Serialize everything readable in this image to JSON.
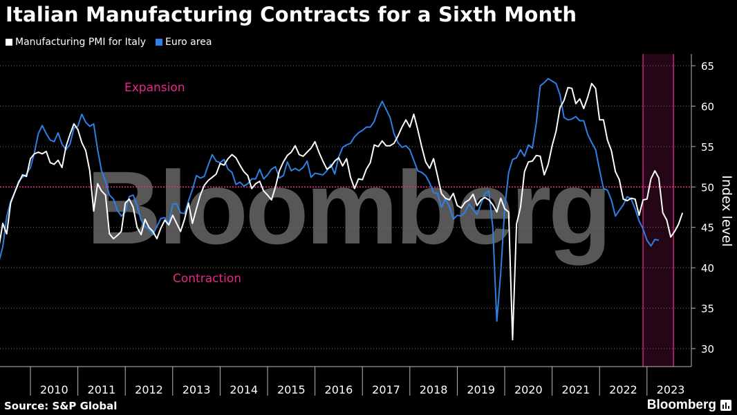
{
  "header": {
    "title": "Italian Manufacturing Contracts for a Sixth Month"
  },
  "legend": [
    {
      "label": "Manufacturing PMI for Italy",
      "color": "#ffffff"
    },
    {
      "label": "Euro area",
      "color": "#2f80e6"
    }
  ],
  "footer": {
    "source": "Source: S&P Global",
    "brand": "Bloomberg"
  },
  "watermark": "Bloomberg",
  "chart_data": {
    "type": "line",
    "ylabel": "Index level",
    "ylim": [
      28,
      66
    ],
    "yticks": [
      30,
      35,
      40,
      45,
      50,
      55,
      60,
      65
    ],
    "x_categories": [
      "2010",
      "2011",
      "2012",
      "2013",
      "2014",
      "2015",
      "2016",
      "2017",
      "2018",
      "2019",
      "2020",
      "2021",
      "2022",
      "2023"
    ],
    "x_start": "2009-03",
    "x_end": "2023-07",
    "reference_line": {
      "value": 50,
      "color": "#e8288c"
    },
    "annotations": [
      {
        "text": "Expansion",
        "color": "#e8288c"
      },
      {
        "text": "Contraction",
        "color": "#e8288c"
      }
    ],
    "highlight_period": {
      "start": "2022-12",
      "end": "2023-07",
      "color": "#e8288c"
    },
    "series": [
      {
        "name": "Manufacturing PMI for Italy",
        "color": "#ffffff",
        "start": "2009-03",
        "values": [
          37,
          41,
          42.5,
          45.5,
          44.2,
          48,
          49.3,
          50.5,
          51.5,
          51.3,
          53.5,
          54.1,
          54.3,
          54.1,
          54.4,
          53,
          52.8,
          53.3,
          52.4,
          55,
          56.5,
          57.8,
          57.1,
          55.5,
          54.5,
          52,
          47,
          50.4,
          49.5,
          49,
          44.2,
          43.6,
          44,
          44.5,
          48,
          48.5,
          47.5,
          45,
          44.1,
          46,
          45,
          44.5,
          43.6,
          44.9,
          45.9,
          45.3,
          46.5,
          45.5,
          44.5,
          46,
          48,
          45.5,
          47.3,
          49,
          50.2,
          50.8,
          51.2,
          51.6,
          52.9,
          52.7,
          53.5,
          54,
          53.6,
          52.7,
          51.9,
          51.4,
          49.8,
          50.4,
          50.7,
          49.5,
          49,
          48.4,
          50,
          52,
          53.1,
          53.9,
          54.3,
          55.1,
          54,
          53.8,
          54.3,
          54.8,
          55.6,
          54.3,
          53.2,
          52.2,
          52.5,
          53.2,
          53.6,
          52.6,
          53.5,
          51.2,
          49.8,
          51,
          50.9,
          52.2,
          53,
          55.2,
          55,
          55.7,
          55.1,
          55.1,
          55.4,
          56.3,
          57.4,
          58.3,
          57.4,
          59,
          57.1,
          55,
          53.1,
          52.3,
          53.5,
          51.4,
          49.2,
          48.6,
          48.4,
          49.2,
          47.7,
          47.4,
          48.1,
          48.4,
          49.1,
          47.7,
          48.4,
          48.7,
          48.4,
          47.8,
          46.9,
          48.6,
          47.3,
          46.9,
          31.1,
          45.4,
          47.5,
          51.9,
          53.1,
          53.2,
          53.9,
          53.8,
          51.5,
          52.8,
          55.1,
          56.9,
          59.8,
          60.7,
          62.3,
          62.2,
          60.3,
          60.9,
          59.7,
          61.1,
          62.8,
          62.2,
          58.3,
          58.3,
          55.8,
          54.5,
          51.9,
          50.9,
          48.5,
          48.3,
          48.6,
          48.5,
          46.5,
          48.4,
          48.5,
          51,
          52,
          51.1,
          46.8,
          45.9,
          43.8,
          44.5,
          45.4,
          46.8
        ]
      },
      {
        "name": "Euro area",
        "color": "#2f80e6",
        "start": "2009-03",
        "values": [
          33.9,
          36.8,
          40.7,
          42.6,
          46.3,
          48.2,
          49.3,
          50.7,
          51.2,
          51.6,
          52.4,
          54.2,
          56.6,
          57.6,
          56.6,
          55.8,
          55.6,
          56.7,
          55.3,
          54.6,
          55.3,
          57.3,
          57.5,
          59,
          58,
          57.5,
          57.8,
          54.6,
          52,
          50.7,
          49,
          48.5,
          47.1,
          46.4,
          46.9,
          48.8,
          49,
          47.7,
          45.9,
          45.1,
          44.8,
          44.1,
          45.1,
          46.1,
          46.2,
          45.4,
          47.9,
          47.9,
          46.8,
          46.7,
          48.3,
          49.7,
          51.4,
          51.1,
          51.3,
          52.7,
          54,
          53.2,
          53,
          53.4,
          52.2,
          51.8,
          50.3,
          50.6,
          50.1,
          50.4,
          51,
          51,
          52.2,
          51,
          51.5,
          52.2,
          52.5,
          51.1,
          51.4,
          53.1,
          52,
          52.3,
          52,
          52.4,
          53.2,
          51.2,
          51.7,
          51.6,
          51.5,
          52,
          52.8,
          51.6,
          53.7,
          54.9,
          55.2,
          55.4,
          56.2,
          56.7,
          57,
          57.4,
          57.4,
          58.1,
          59.6,
          60.6,
          59.6,
          58.6,
          56.6,
          55.5,
          54.9,
          55.1,
          54.6,
          53.3,
          52,
          51.8,
          51.4,
          50.5,
          49.3,
          49.2,
          47.5,
          48.5,
          47.6,
          46,
          46.5,
          46.4,
          46.9,
          47.9,
          47.2,
          46.6,
          47.9,
          49.2,
          49.5,
          45,
          33.4,
          39.4,
          47.4,
          51.8,
          53.4,
          53.6,
          54.6,
          53.8,
          55.2,
          54.8,
          57.9,
          62.5,
          62.9,
          63.4,
          63.1,
          62.8,
          61.4,
          58.6,
          58.3,
          58.4,
          58.7,
          58.2,
          58.2,
          56.5,
          55.5,
          54.6,
          52.1,
          49.8,
          49.6,
          48.4,
          46.4,
          47.1,
          47.8,
          48.8,
          48.5,
          47.3,
          45.8,
          44.8,
          43.4,
          42.7,
          43.5,
          43.4
        ]
      }
    ]
  }
}
